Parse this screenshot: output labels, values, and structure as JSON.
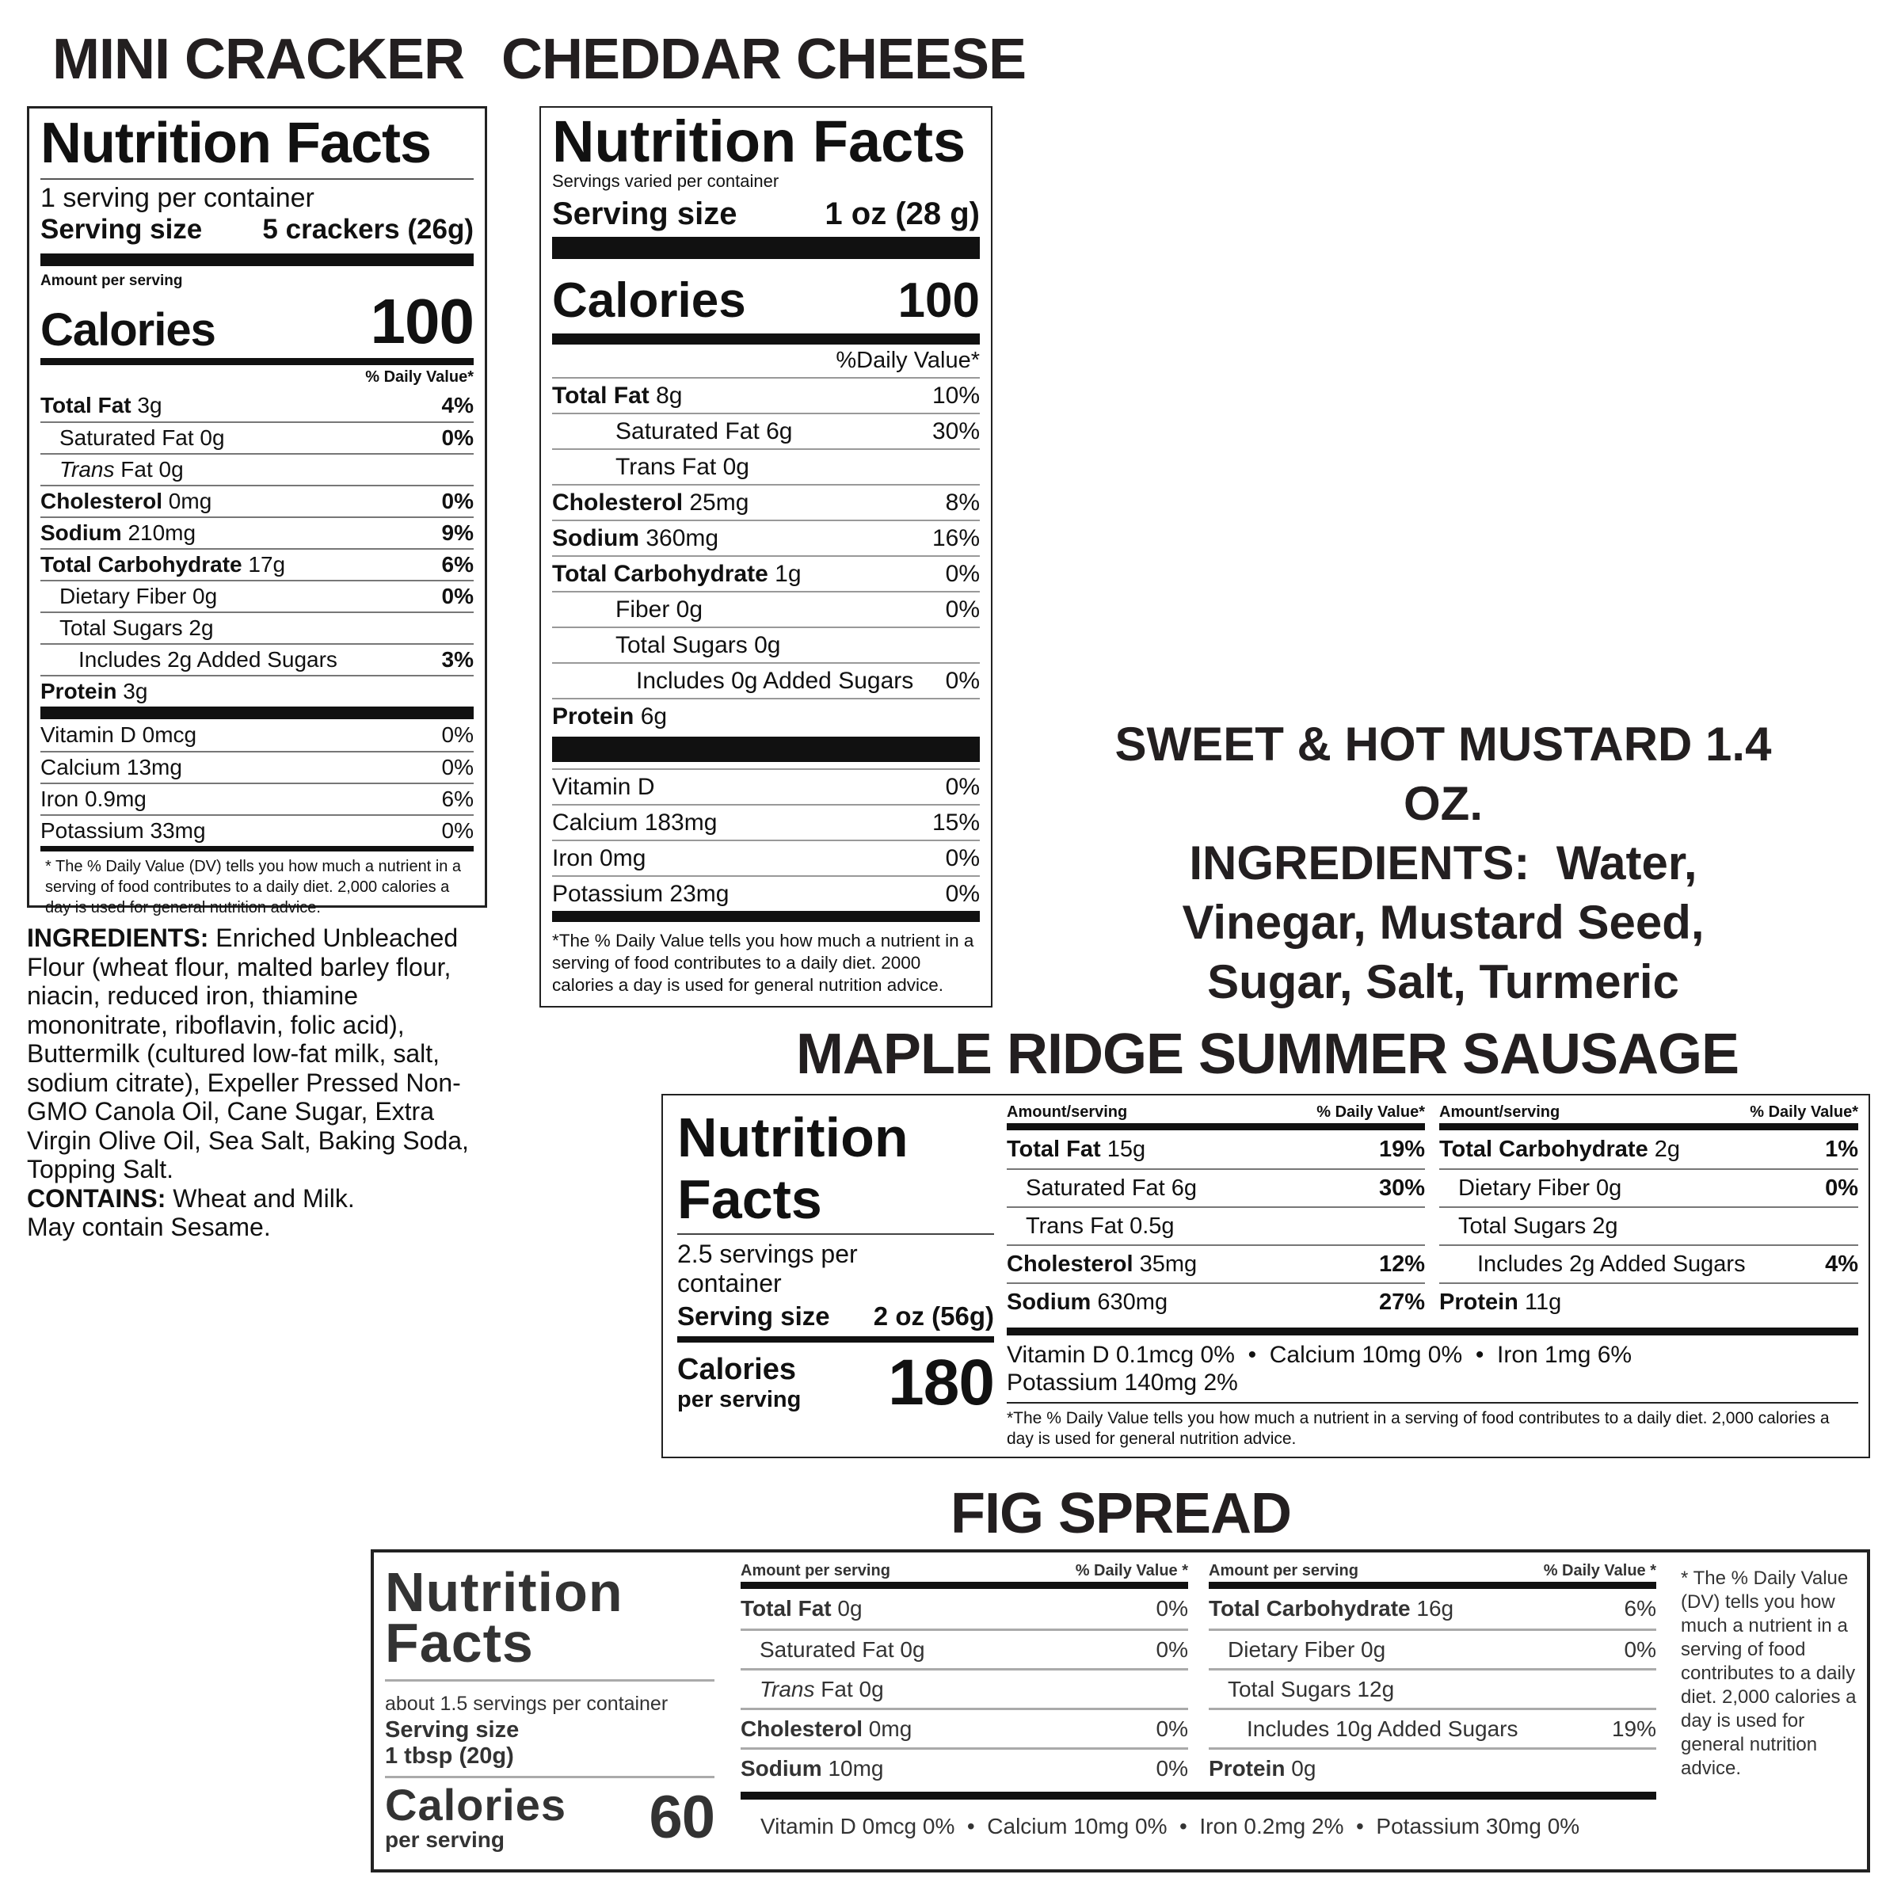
{
  "titles": {
    "mini": "MINI CRACKER",
    "cheddar": "CHEDDAR CHEESE",
    "mustard": "SWEET & HOT MUSTARD 1.4 OZ.",
    "sausage": "MAPLE RIDGE SUMMER SAUSAGE",
    "fig": "FIG SPREAD"
  },
  "mini": {
    "heading": "Nutrition Facts",
    "servings": "1 serving per container",
    "serving_size_label": "Serving size",
    "serving_size": "5 crackers (26g)",
    "amount_label": "Amount per serving",
    "calories_label": "Calories",
    "calories": "100",
    "dv_header": "% Daily Value*",
    "rows": [
      {
        "b": "Total Fat",
        "t": " 3g",
        "dv": "4%",
        "bd": true
      },
      {
        "t": "Saturated Fat 0g",
        "dv": "0%",
        "bd": true,
        "ind": 1
      },
      {
        "i": "Trans",
        "t": " Fat 0g",
        "dv": "",
        "ind": 1
      },
      {
        "b": "Cholesterol",
        "t": " 0mg",
        "dv": "0%",
        "bd": true
      },
      {
        "b": "Sodium",
        "t": " 210mg",
        "dv": "9%",
        "bd": true
      },
      {
        "b": "Total Carbohydrate",
        "t": " 17g",
        "dv": "6%",
        "bd": true
      },
      {
        "t": "Dietary Fiber 0g",
        "dv": "0%",
        "bd": true,
        "ind": 1
      },
      {
        "t": "Total Sugars 2g",
        "dv": "",
        "ind": 1
      },
      {
        "t": "Includes 2g Added Sugars",
        "dv": "3%",
        "bd": true,
        "ind": 2
      },
      {
        "b": "Protein",
        "t": " 3g",
        "dv": ""
      }
    ],
    "vitamins": [
      {
        "t": "Vitamin D 0mcg",
        "dv": "0%"
      },
      {
        "t": "Calcium 13mg",
        "dv": "0%"
      },
      {
        "t": "Iron 0.9mg",
        "dv": "6%"
      },
      {
        "t": "Potassium 33mg",
        "dv": "0%"
      }
    ],
    "footnote": "* The % Daily Value (DV) tells you how much a nutrient in a serving of food contributes to a daily diet. 2,000 calories a day is used for general nutrition advice."
  },
  "ingredients": {
    "label": "INGREDIENTS:",
    "text": " Enriched Unbleached Flour (wheat flour, malted barley flour, niacin, reduced iron, thiamine mononitrate, riboflavin, folic acid), Buttermilk (cultured low-fat milk, salt, sodium citrate), Expeller Pressed Non-GMO Canola Oil, Cane Sugar, Extra Virgin Olive Oil, Sea Salt, Baking Soda, Topping Salt.",
    "contains_label": "CONTAINS:",
    "contains": " Wheat and Milk.",
    "may_contain": "May contain Sesame."
  },
  "cheddar": {
    "heading": "Nutrition Facts",
    "servings": "Servings varied per container",
    "serving_size_label": "Serving size",
    "serving_size": "1 oz (28 g)",
    "calories_label": "Calories",
    "calories": "100",
    "dv_header": "%Daily Value*",
    "rows": [
      {
        "b": "Total Fat",
        "t": " 8g",
        "dv": "10%"
      },
      {
        "t": "Saturated Fat 6g",
        "dv": "30%",
        "ind": 1
      },
      {
        "t": "Trans Fat 0g",
        "dv": "",
        "ind": 1
      },
      {
        "b": "Cholesterol",
        "t": " 25mg",
        "dv": "8%"
      },
      {
        "b": "Sodium",
        "t": " 360mg",
        "dv": "16%"
      },
      {
        "b": "Total Carbohydrate",
        "t": " 1g",
        "dv": "0%"
      },
      {
        "t": "Fiber 0g",
        "dv": "0%",
        "ind": 1
      },
      {
        "t": "Total Sugars 0g",
        "dv": "",
        "ind": 1
      },
      {
        "t": "Includes 0g Added Sugars",
        "dv": "0%",
        "ind": 2
      },
      {
        "b": "Protein",
        "t": " 6g",
        "dv": ""
      }
    ],
    "vitamins": [
      {
        "t": "Vitamin D",
        "dv": "0%"
      },
      {
        "t": "Calcium 183mg",
        "dv": "15%"
      },
      {
        "t": "Iron 0mg",
        "dv": "0%"
      },
      {
        "t": "Potassium 23mg",
        "dv": "0%"
      }
    ],
    "footnote": "*The % Daily Value tells you how much a nutrient in a serving of food contributes to a daily diet. 2000 calories a day is used for general nutrition advice."
  },
  "mustard": {
    "ingredients_label": "INGREDIENTS:",
    "ingredients": "Water, Vinegar, Mustard Seed, Sugar, Salt, Turmeric"
  },
  "sausage": {
    "heading": "Nutrition Facts",
    "servings": "2.5 servings per container",
    "serving_size_label": "Serving size",
    "serving_size": "2 oz (56g)",
    "calories_label": "Calories",
    "per_serving": "per serving",
    "calories": "180",
    "col_header": "Amount/serving",
    "dv_header": "% Daily Value*",
    "col1": [
      {
        "b": "Total Fat",
        "t": " 15g",
        "dv": "19%",
        "bd": true
      },
      {
        "t": "Saturated Fat 6g",
        "dv": "30%",
        "bd": true,
        "ind": 1
      },
      {
        "t": "Trans Fat 0.5g",
        "dv": "",
        "ind": 1
      },
      {
        "b": "Cholesterol",
        "t": " 35mg",
        "dv": "12%",
        "bd": true
      },
      {
        "b": "Sodium",
        "t": " 630mg",
        "dv": "27%",
        "bd": true
      }
    ],
    "col2": [
      {
        "b": "Total Carbohydrate",
        "t": " 2g",
        "dv": "1%",
        "bd": true
      },
      {
        "t": "Dietary Fiber 0g",
        "dv": "0%",
        "bd": true,
        "ind": 1
      },
      {
        "t": "Total Sugars 2g",
        "dv": "",
        "ind": 1
      },
      {
        "t": "Includes 2g Added Sugars",
        "dv": "4%",
        "bd": true,
        "ind": 2
      },
      {
        "b": "Protein",
        "t": " 11g",
        "dv": ""
      }
    ],
    "vitamins_line1": "Vitamin D 0.1mcg 0%  •  Calcium 10mg 0%  •  Iron 1mg 6%",
    "vitamins_line2": "Potassium 140mg 2%",
    "footnote": "*The % Daily Value tells you how much a nutrient in a serving of food contributes to a daily diet. 2,000 calories a day is used for general nutrition advice."
  },
  "fig": {
    "heading": "Nutrition Facts",
    "servings": "about 1.5 servings per container",
    "serving_size_label": "Serving size",
    "serving_size": "1 tbsp (20g)",
    "calories_label": "Calories",
    "per_serving": "per serving",
    "calories": "60",
    "col_header": "Amount per serving",
    "dv_header": "% Daily Value *",
    "col1": [
      {
        "b": "Total Fat",
        "t": " 0g",
        "dv": "0%"
      },
      {
        "t": "Saturated Fat 0g",
        "dv": "0%",
        "ind": 1
      },
      {
        "i": "Trans",
        "t": " Fat 0g",
        "dv": "",
        "ind": 1
      },
      {
        "b": "Cholesterol",
        "t": " 0mg",
        "dv": "0%"
      },
      {
        "b": "Sodium",
        "t": " 10mg",
        "dv": "0%"
      }
    ],
    "col2": [
      {
        "b": "Total Carbohydrate",
        "t": " 16g",
        "dv": "6%"
      },
      {
        "t": "Dietary Fiber 0g",
        "dv": "0%",
        "ind": 1
      },
      {
        "t": "Total Sugars 12g",
        "dv": "",
        "ind": 1
      },
      {
        "t": "Includes 10g Added Sugars",
        "dv": "19%",
        "ind": 2
      },
      {
        "b": "Protein",
        "t": " 0g",
        "dv": ""
      }
    ],
    "vitamins": "Vitamin D 0mcg 0%  •  Calcium 10mg 0%  •  Iron 0.2mg 2%  •  Potassium 30mg 0%",
    "footnote": "* The % Daily Value (DV) tells you how much a nutrient in a serving of food contributes to a daily diet. 2,000 calories a day is used for general nutrition advice."
  }
}
